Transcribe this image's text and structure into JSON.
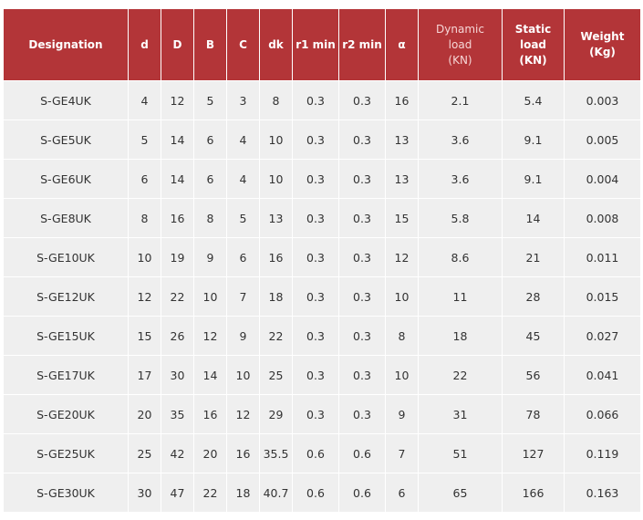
{
  "table": {
    "headers": [
      {
        "id": "designation",
        "lines": [
          "Designation"
        ],
        "bold": true
      },
      {
        "id": "d",
        "lines": [
          "d"
        ],
        "bold": true
      },
      {
        "id": "D",
        "lines": [
          "D"
        ],
        "bold": true
      },
      {
        "id": "B",
        "lines": [
          "B"
        ],
        "bold": true
      },
      {
        "id": "C",
        "lines": [
          "C"
        ],
        "bold": true
      },
      {
        "id": "dk",
        "lines": [
          "dk"
        ],
        "bold": true
      },
      {
        "id": "r1min",
        "lines": [
          "r1 min"
        ],
        "bold": true
      },
      {
        "id": "r2min",
        "lines": [
          "r2 min"
        ],
        "bold": true
      },
      {
        "id": "alpha",
        "lines": [
          "α"
        ],
        "bold": true
      },
      {
        "id": "dynamic-load",
        "lines": [
          "Dynamic",
          "load",
          "(KN)"
        ],
        "bold": false
      },
      {
        "id": "static-load",
        "lines": [
          "Static",
          "load",
          "(KN)"
        ],
        "bold": true
      },
      {
        "id": "weight",
        "lines": [
          "Weight",
          "(Kg)"
        ],
        "bold": true
      }
    ],
    "rows": [
      [
        "S-GE4UK",
        "4",
        "12",
        "5",
        "3",
        "8",
        "0.3",
        "0.3",
        "16",
        "2.1",
        "5.4",
        "0.003"
      ],
      [
        "S-GE5UK",
        "5",
        "14",
        "6",
        "4",
        "10",
        "0.3",
        "0.3",
        "13",
        "3.6",
        "9.1",
        "0.005"
      ],
      [
        "S-GE6UK",
        "6",
        "14",
        "6",
        "4",
        "10",
        "0.3",
        "0.3",
        "13",
        "3.6",
        "9.1",
        "0.004"
      ],
      [
        "S-GE8UK",
        "8",
        "16",
        "8",
        "5",
        "13",
        "0.3",
        "0.3",
        "15",
        "5.8",
        "14",
        "0.008"
      ],
      [
        "S-GE10UK",
        "10",
        "19",
        "9",
        "6",
        "16",
        "0.3",
        "0.3",
        "12",
        "8.6",
        "21",
        "0.011"
      ],
      [
        "S-GE12UK",
        "12",
        "22",
        "10",
        "7",
        "18",
        "0.3",
        "0.3",
        "10",
        "11",
        "28",
        "0.015"
      ],
      [
        "S-GE15UK",
        "15",
        "26",
        "12",
        "9",
        "22",
        "0.3",
        "0.3",
        "8",
        "18",
        "45",
        "0.027"
      ],
      [
        "S-GE17UK",
        "17",
        "30",
        "14",
        "10",
        "25",
        "0.3",
        "0.3",
        "10",
        "22",
        "56",
        "0.041"
      ],
      [
        "S-GE20UK",
        "20",
        "35",
        "16",
        "12",
        "29",
        "0.3",
        "0.3",
        "9",
        "31",
        "78",
        "0.066"
      ],
      [
        "S-GE25UK",
        "25",
        "42",
        "20",
        "16",
        "35.5",
        "0.6",
        "0.6",
        "7",
        "51",
        "127",
        "0.119"
      ],
      [
        "S-GE30UK",
        "30",
        "47",
        "22",
        "18",
        "40.7",
        "0.6",
        "0.6",
        "6",
        "65",
        "166",
        "0.163"
      ]
    ]
  },
  "colors": {
    "header_bg": "#b33538",
    "row_bg": "#efefef",
    "text": "#333333"
  }
}
